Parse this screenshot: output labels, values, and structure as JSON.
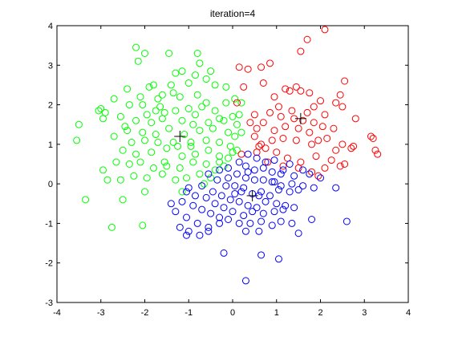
{
  "chart_data": {
    "type": "scatter",
    "title": "iteration=4",
    "xlabel": "",
    "ylabel": "",
    "xlim": [
      -4,
      4
    ],
    "ylim": [
      -3,
      4
    ],
    "xticks": [
      -4,
      -3,
      -2,
      -1,
      0,
      1,
      2,
      3,
      4
    ],
    "yticks": [
      -3,
      -2,
      -1,
      0,
      1,
      2,
      3,
      4
    ],
    "xtick_labels": [
      "-4",
      "-3",
      "-2",
      "-1",
      "0",
      "1",
      "2",
      "3",
      "4"
    ],
    "ytick_labels": [
      "-3",
      "-2",
      "-1",
      "0",
      "1",
      "2",
      "3",
      "4"
    ],
    "grid": false,
    "legend": "none",
    "marker": "circle",
    "series": [
      {
        "name": "cluster-green",
        "color": "#00ff00",
        "points": [
          [
            -2.2,
            3.45
          ],
          [
            -2.0,
            3.3
          ],
          [
            -1.45,
            3.3
          ],
          [
            -0.8,
            3.3
          ],
          [
            -0.75,
            3.05
          ],
          [
            -0.85,
            2.75
          ],
          [
            -2.15,
            3.1
          ],
          [
            -1.3,
            2.8
          ],
          [
            -1.8,
            2.5
          ],
          [
            -1.4,
            2.5
          ],
          [
            -1.0,
            2.55
          ],
          [
            -0.6,
            2.65
          ],
          [
            -2.4,
            2.4
          ],
          [
            -1.9,
            2.45
          ],
          [
            -1.6,
            2.25
          ],
          [
            -1.35,
            2.3
          ],
          [
            -0.5,
            2.85
          ],
          [
            -0.4,
            2.5
          ],
          [
            -0.15,
            2.45
          ],
          [
            0.05,
            2.15
          ],
          [
            -2.7,
            2.15
          ],
          [
            -2.1,
            2.2
          ],
          [
            -1.7,
            2.15
          ],
          [
            -1.2,
            2.2
          ],
          [
            -0.8,
            2.25
          ],
          [
            -0.6,
            2.05
          ],
          [
            -2.9,
            1.8
          ],
          [
            -3.0,
            1.9
          ],
          [
            -2.05,
            2.0
          ],
          [
            -1.75,
            1.85
          ],
          [
            -1.55,
            1.8
          ],
          [
            -1.3,
            1.85
          ],
          [
            -1.0,
            1.9
          ],
          [
            -0.85,
            1.75
          ],
          [
            -0.4,
            1.85
          ],
          [
            -0.3,
            1.65
          ],
          [
            0.0,
            1.7
          ],
          [
            0.15,
            1.75
          ],
          [
            -2.55,
            1.7
          ],
          [
            -2.2,
            1.6
          ],
          [
            -1.85,
            1.55
          ],
          [
            -1.6,
            1.65
          ],
          [
            -1.15,
            1.6
          ],
          [
            -0.9,
            1.5
          ],
          [
            -0.55,
            1.55
          ],
          [
            -0.2,
            1.6
          ],
          [
            0.1,
            1.5
          ],
          [
            -3.5,
            1.5
          ],
          [
            -2.95,
            1.65
          ],
          [
            -2.4,
            1.35
          ],
          [
            -2.05,
            1.3
          ],
          [
            -1.75,
            1.25
          ],
          [
            -1.45,
            1.4
          ],
          [
            -1.1,
            1.25
          ],
          [
            -0.75,
            1.35
          ],
          [
            -0.45,
            1.4
          ],
          [
            -0.1,
            1.3
          ],
          [
            0.05,
            1.2
          ],
          [
            -3.55,
            1.1
          ],
          [
            -2.7,
            1.2
          ],
          [
            -2.3,
            1.05
          ],
          [
            -2.0,
            1.1
          ],
          [
            -1.7,
            1.05
          ],
          [
            -1.25,
            0.95
          ],
          [
            -0.95,
            1.05
          ],
          [
            -0.6,
            1.1
          ],
          [
            -0.3,
            1.05
          ],
          [
            -0.05,
            0.95
          ],
          [
            0.1,
            0.85
          ],
          [
            -2.5,
            0.85
          ],
          [
            -2.2,
            0.75
          ],
          [
            -1.85,
            0.8
          ],
          [
            -1.5,
            0.9
          ],
          [
            -1.15,
            0.7
          ],
          [
            -0.85,
            0.75
          ],
          [
            -0.55,
            0.85
          ],
          [
            -0.3,
            0.7
          ],
          [
            -0.1,
            0.65
          ],
          [
            -2.65,
            0.55
          ],
          [
            -2.35,
            0.5
          ],
          [
            -2.1,
            0.55
          ],
          [
            -1.8,
            0.4
          ],
          [
            -1.5,
            0.45
          ],
          [
            -1.2,
            0.4
          ],
          [
            -0.9,
            0.55
          ],
          [
            -0.6,
            0.5
          ],
          [
            -0.4,
            0.35
          ],
          [
            -0.2,
            0.45
          ],
          [
            -2.95,
            0.35
          ],
          [
            -2.55,
            0.1
          ],
          [
            -2.25,
            0.2
          ],
          [
            -1.95,
            0.15
          ],
          [
            -1.6,
            0.25
          ],
          [
            -1.3,
            0.1
          ],
          [
            -1.05,
            0.15
          ],
          [
            -0.75,
            0.25
          ],
          [
            -0.5,
            0.15
          ],
          [
            -3.35,
            -0.4
          ],
          [
            -2.85,
            0.1
          ],
          [
            -2.0,
            -0.2
          ],
          [
            -1.15,
            -0.2
          ],
          [
            -2.5,
            -0.4
          ],
          [
            -2.75,
            -1.1
          ],
          [
            -2.05,
            -1.05
          ],
          [
            0.0,
            0.8
          ],
          [
            -1.35,
            1.05
          ],
          [
            -2.45,
            1.45
          ],
          [
            -0.15,
            2.05
          ],
          [
            -1.65,
            1.95
          ],
          [
            -0.7,
            1.95
          ],
          [
            -1.15,
            2.85
          ],
          [
            -3.05,
            1.85
          ],
          [
            0.2,
            2.05
          ],
          [
            -0.3,
            0.55
          ],
          [
            -1.95,
            1.75
          ],
          [
            -0.95,
            0.95
          ],
          [
            -2.35,
            2.0
          ],
          [
            -1.55,
            0.55
          ],
          [
            0.2,
            1.3
          ],
          [
            -0.65,
            0.0
          ]
        ]
      },
      {
        "name": "cluster-red",
        "color": "#ff0000",
        "points": [
          [
            2.1,
            3.9
          ],
          [
            1.7,
            3.65
          ],
          [
            0.15,
            2.95
          ],
          [
            0.65,
            2.95
          ],
          [
            0.85,
            3.05
          ],
          [
            1.55,
            3.35
          ],
          [
            0.25,
            2.45
          ],
          [
            0.7,
            2.55
          ],
          [
            1.45,
            2.45
          ],
          [
            2.55,
            2.6
          ],
          [
            1.2,
            2.4
          ],
          [
            1.3,
            2.35
          ],
          [
            1.55,
            2.35
          ],
          [
            1.75,
            2.3
          ],
          [
            2.0,
            2.1
          ],
          [
            2.45,
            2.25
          ],
          [
            0.1,
            2.05
          ],
          [
            0.95,
            2.2
          ],
          [
            1.05,
            1.95
          ],
          [
            1.35,
            1.85
          ],
          [
            1.7,
            1.8
          ],
          [
            2.35,
            2.05
          ],
          [
            2.5,
            1.95
          ],
          [
            0.5,
            1.75
          ],
          [
            0.85,
            1.8
          ],
          [
            1.1,
            1.7
          ],
          [
            1.4,
            1.65
          ],
          [
            1.6,
            1.6
          ],
          [
            1.85,
            1.55
          ],
          [
            2.1,
            1.75
          ],
          [
            2.8,
            1.65
          ],
          [
            0.55,
            1.4
          ],
          [
            0.7,
            1.55
          ],
          [
            0.95,
            1.35
          ],
          [
            1.2,
            1.45
          ],
          [
            1.5,
            1.4
          ],
          [
            1.75,
            1.3
          ],
          [
            2.05,
            1.45
          ],
          [
            2.3,
            1.4
          ],
          [
            3.15,
            1.2
          ],
          [
            0.5,
            1.2
          ],
          [
            0.65,
            1.0
          ],
          [
            0.75,
            0.9
          ],
          [
            0.9,
            1.1
          ],
          [
            1.15,
            1.15
          ],
          [
            1.45,
            1.1
          ],
          [
            1.8,
            1.0
          ],
          [
            2.15,
            1.15
          ],
          [
            2.5,
            1.0
          ],
          [
            3.2,
            1.15
          ],
          [
            0.2,
            0.75
          ],
          [
            0.55,
            0.8
          ],
          [
            1.0,
            0.8
          ],
          [
            1.25,
            0.65
          ],
          [
            1.55,
            0.55
          ],
          [
            1.9,
            0.7
          ],
          [
            2.25,
            0.6
          ],
          [
            2.7,
            0.9
          ],
          [
            2.75,
            0.95
          ],
          [
            3.25,
            0.85
          ],
          [
            0.8,
            0.55
          ],
          [
            1.15,
            0.45
          ],
          [
            1.5,
            0.4
          ],
          [
            1.8,
            0.3
          ],
          [
            2.1,
            0.4
          ],
          [
            2.45,
            0.45
          ],
          [
            2.55,
            0.5
          ],
          [
            3.3,
            0.75
          ],
          [
            1.95,
            0.2
          ],
          [
            0.6,
            0.95
          ],
          [
            0.35,
            2.9
          ],
          [
            1.95,
            1.1
          ],
          [
            2.35,
            0.85
          ],
          [
            0.4,
            1.55
          ],
          [
            1.85,
            1.95
          ]
        ]
      },
      {
        "name": "cluster-blue",
        "color": "#0000ff",
        "points": [
          [
            0.15,
            0.55
          ],
          [
            0.35,
            0.75
          ],
          [
            0.55,
            0.65
          ],
          [
            0.75,
            0.55
          ],
          [
            0.95,
            0.6
          ],
          [
            1.15,
            0.35
          ],
          [
            0.3,
            0.45
          ],
          [
            0.5,
            0.35
          ],
          [
            0.7,
            0.4
          ],
          [
            0.9,
            0.3
          ],
          [
            1.1,
            0.25
          ],
          [
            1.4,
            0.2
          ],
          [
            1.75,
            0.25
          ],
          [
            -0.3,
            0.35
          ],
          [
            -0.1,
            0.4
          ],
          [
            0.1,
            0.25
          ],
          [
            0.3,
            0.15
          ],
          [
            0.5,
            0.1
          ],
          [
            0.7,
            0.1
          ],
          [
            0.9,
            0.05
          ],
          [
            1.1,
            -0.05
          ],
          [
            1.35,
            0.0
          ],
          [
            1.6,
            -0.05
          ],
          [
            2.0,
            0.15
          ],
          [
            -0.55,
            0.25
          ],
          [
            -0.35,
            0.1
          ],
          [
            -0.15,
            -0.05
          ],
          [
            0.05,
            -0.05
          ],
          [
            0.25,
            -0.1
          ],
          [
            0.45,
            -0.25
          ],
          [
            0.65,
            -0.2
          ],
          [
            0.85,
            -0.3
          ],
          [
            1.05,
            -0.15
          ],
          [
            1.3,
            -0.2
          ],
          [
            1.5,
            -0.15
          ],
          [
            1.85,
            -0.1
          ],
          [
            2.35,
            -0.1
          ],
          [
            -0.7,
            -0.05
          ],
          [
            -0.45,
            -0.2
          ],
          [
            -0.25,
            -0.3
          ],
          [
            -0.05,
            -0.4
          ],
          [
            0.15,
            -0.45
          ],
          [
            0.35,
            -0.55
          ],
          [
            0.55,
            -0.6
          ],
          [
            0.75,
            -0.45
          ],
          [
            1.0,
            -0.5
          ],
          [
            1.2,
            -0.55
          ],
          [
            1.4,
            -0.6
          ],
          [
            -1.0,
            -0.1
          ],
          [
            -0.85,
            -0.3
          ],
          [
            -0.6,
            -0.35
          ],
          [
            -0.4,
            -0.5
          ],
          [
            -0.2,
            -0.6
          ],
          [
            0.0,
            -0.7
          ],
          [
            0.25,
            -0.8
          ],
          [
            0.45,
            -0.7
          ],
          [
            0.7,
            -0.75
          ],
          [
            0.95,
            -0.7
          ],
          [
            1.15,
            -0.65
          ],
          [
            -1.4,
            -0.5
          ],
          [
            -1.15,
            -0.45
          ],
          [
            -0.9,
            -0.55
          ],
          [
            -0.7,
            -0.65
          ],
          [
            -0.5,
            -0.75
          ],
          [
            -0.3,
            -0.85
          ],
          [
            -0.1,
            -0.9
          ],
          [
            0.15,
            -1.0
          ],
          [
            0.4,
            -1.0
          ],
          [
            0.65,
            -0.95
          ],
          [
            0.9,
            -1.05
          ],
          [
            1.1,
            -0.95
          ],
          [
            1.35,
            -1.0
          ],
          [
            1.8,
            -0.9
          ],
          [
            2.6,
            -0.95
          ],
          [
            -1.3,
            -0.7
          ],
          [
            -1.05,
            -0.85
          ],
          [
            -0.8,
            -1.0
          ],
          [
            -0.55,
            -1.1
          ],
          [
            -0.3,
            -1.0
          ],
          [
            -1.2,
            -1.1
          ],
          [
            -1.0,
            -1.2
          ],
          [
            -0.75,
            -1.3
          ],
          [
            -0.55,
            -1.2
          ],
          [
            0.3,
            -1.2
          ],
          [
            0.6,
            -1.2
          ],
          [
            1.5,
            -1.25
          ],
          [
            -1.05,
            -1.3
          ],
          [
            -0.2,
            -1.75
          ],
          [
            0.65,
            -1.8
          ],
          [
            1.05,
            -1.9
          ],
          [
            0.3,
            -2.45
          ],
          [
            -1.05,
            -0.2
          ],
          [
            0.95,
            0.05
          ],
          [
            0.2,
            -0.2
          ],
          [
            -0.1,
            0.15
          ],
          [
            0.35,
            0.3
          ],
          [
            0.6,
            -0.3
          ],
          [
            1.3,
            0.5
          ],
          [
            0.05,
            -0.25
          ],
          [
            1.6,
            0.35
          ]
        ]
      }
    ],
    "centroids": [
      {
        "name": "centroid-green",
        "x": -1.2,
        "y": 1.2
      },
      {
        "name": "centroid-red",
        "x": 1.55,
        "y": 1.65
      },
      {
        "name": "centroid-blue",
        "x": 0.45,
        "y": -0.3
      }
    ]
  }
}
